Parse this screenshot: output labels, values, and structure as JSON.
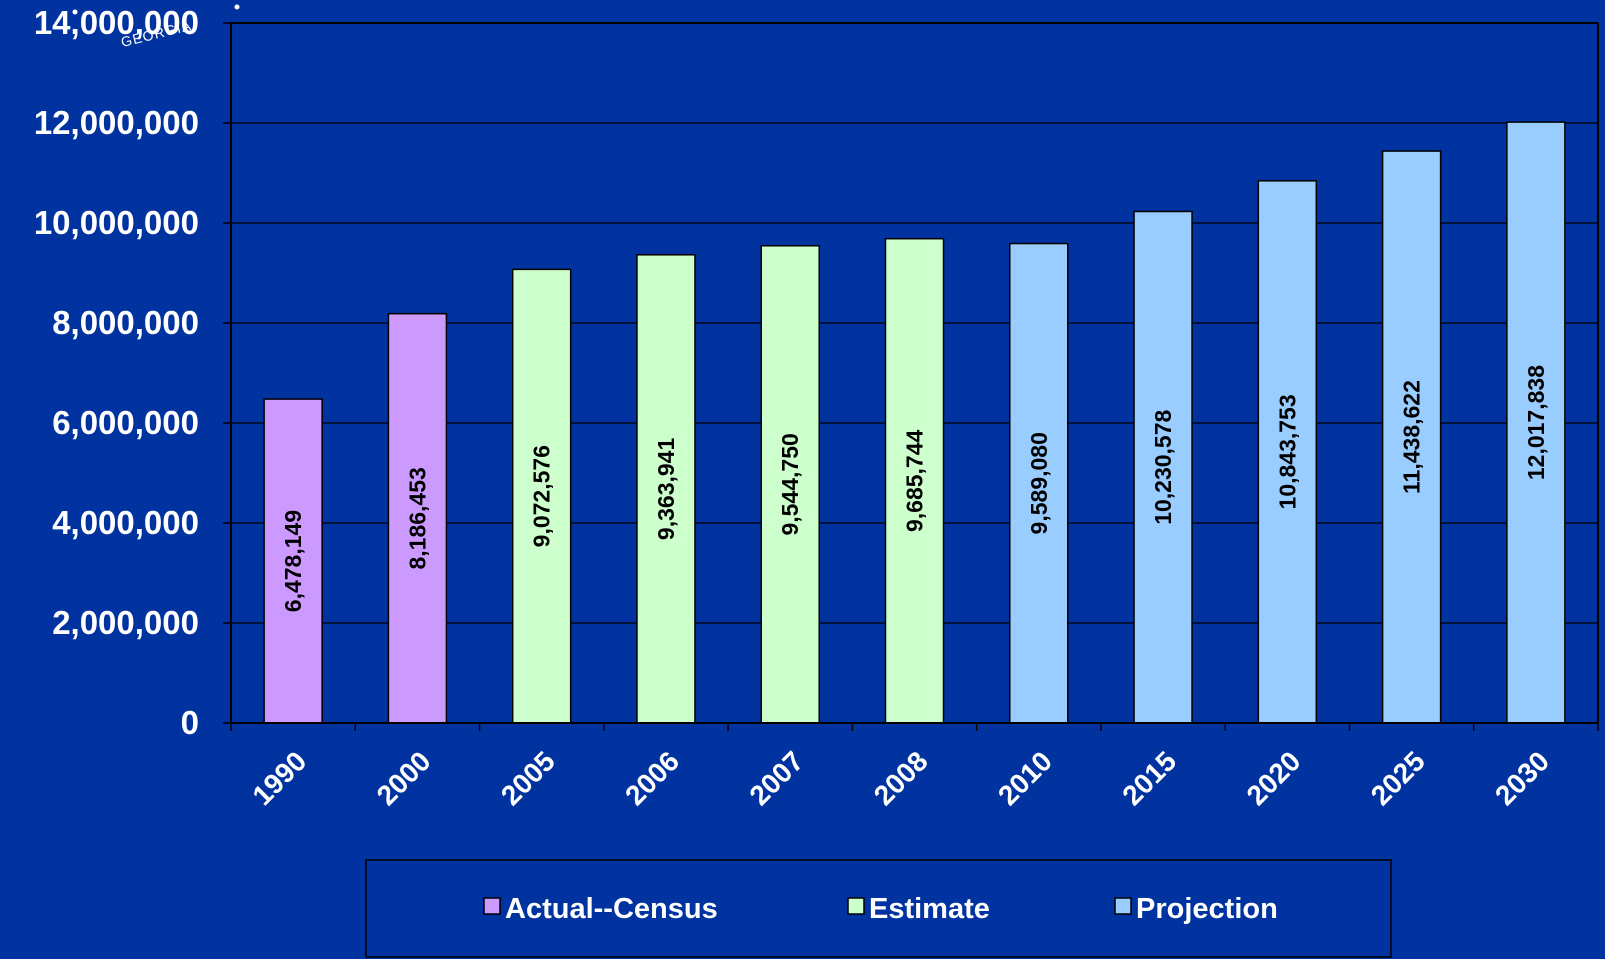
{
  "logo": {
    "text": "GEORGIA"
  },
  "chart_data": {
    "type": "bar",
    "categories": [
      "1990",
      "2000",
      "2005",
      "2006",
      "2007",
      "2008",
      "2010",
      "2015",
      "2020",
      "2025",
      "2030"
    ],
    "values": [
      6478149,
      8186453,
      9072576,
      9363941,
      9544750,
      9685744,
      9589080,
      10230578,
      10843753,
      11438622,
      12017838
    ],
    "data_labels": [
      "6,478,149",
      "8,186,453",
      "9,072,576",
      "9,363,941",
      "9,544,750",
      "9,685,744",
      "9,589,080",
      "10,230,578",
      "10,843,753",
      "11,438,622",
      "12,017,838"
    ],
    "groups": [
      "Actual--Census",
      "Actual--Census",
      "Estimate",
      "Estimate",
      "Estimate",
      "Estimate",
      "Projection",
      "Projection",
      "Projection",
      "Projection",
      "Projection"
    ],
    "series": [
      {
        "name": "Actual--Census",
        "color": "#cc99ff"
      },
      {
        "name": "Estimate",
        "color": "#ccffcc"
      },
      {
        "name": "Projection",
        "color": "#99ccff"
      }
    ],
    "y_ticks": [
      0,
      2000000,
      4000000,
      6000000,
      8000000,
      10000000,
      12000000,
      14000000
    ],
    "y_tick_labels": [
      "0",
      "2,000,000",
      "4,000,000",
      "6,000,000",
      "8,000,000",
      "10,000,000",
      "12,000,000",
      "14,000,000"
    ],
    "ylim": [
      0,
      14000000
    ],
    "grid": true,
    "legend_position": "bottom",
    "background_color": "#0033a0",
    "title": "",
    "xlabel": "",
    "ylabel": ""
  }
}
